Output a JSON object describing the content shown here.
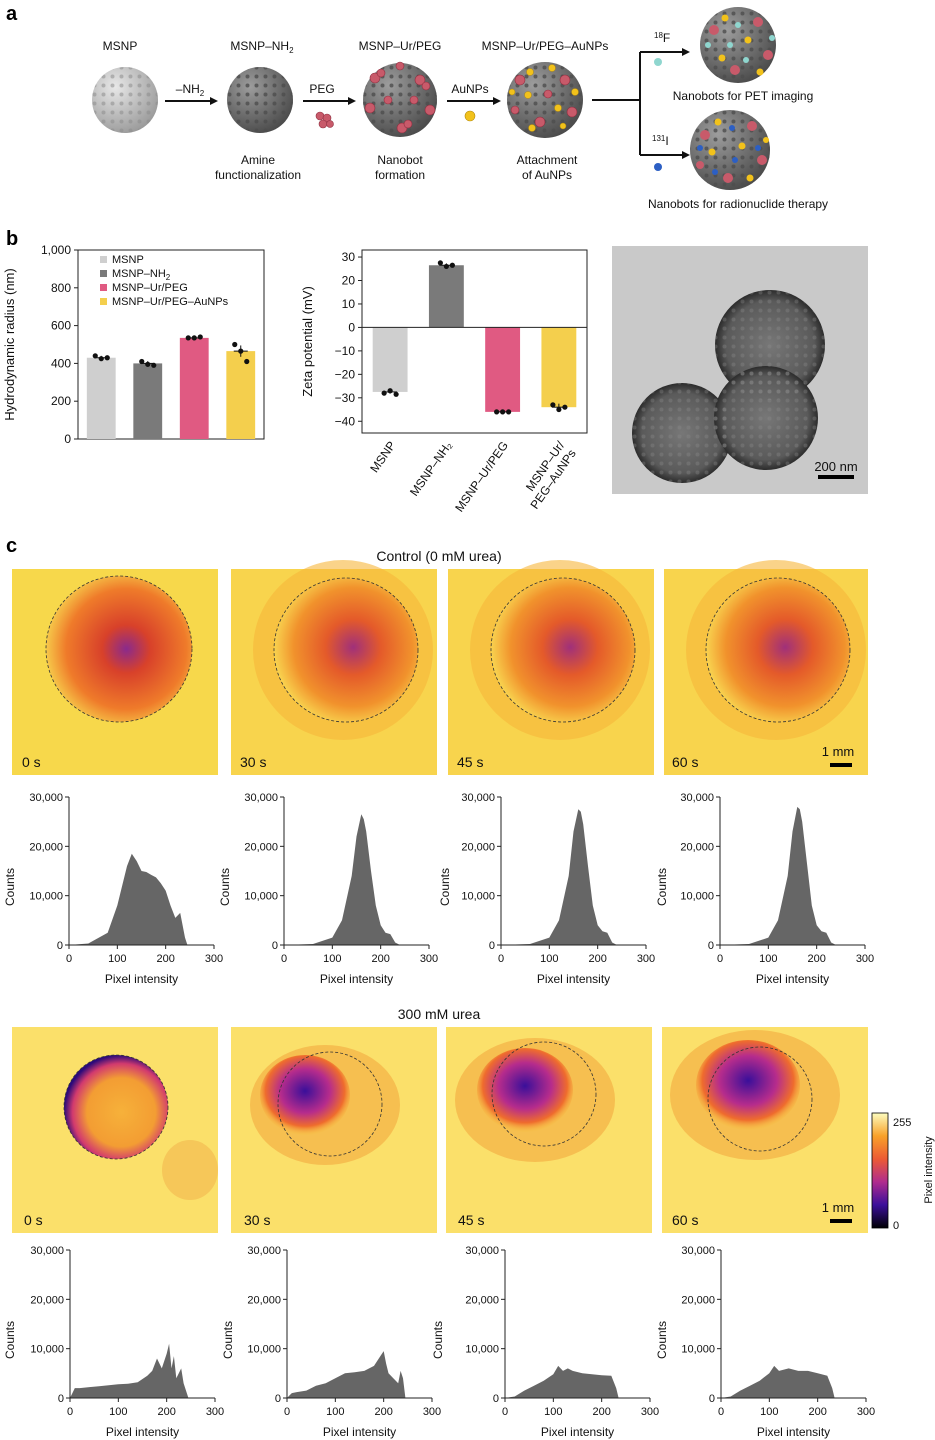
{
  "panel_labels": {
    "a": "a",
    "b": "b",
    "c": "c"
  },
  "panel_a": {
    "stage1_title": "MSNP",
    "stage2_title": "MSNP–NH",
    "stage2_title_sub": "2",
    "stage3_title": "MSNP–Ur/PEG",
    "stage4_title": "MSNP–Ur/PEG–AuNPs",
    "arrow1_label": "–NH",
    "arrow1_label_sub": "2",
    "arrow2_label": "PEG",
    "arrow3_label": "AuNPs",
    "step1_caption_line1": "Amine",
    "step1_caption_line2": "functionalization",
    "step2_caption_line1": "Nanobot",
    "step2_caption_line2": "formation",
    "step3_caption_line1": "Attachment",
    "step3_caption_line2": "of AuNPs",
    "branch_top_sup": "18",
    "branch_top_label": "F",
    "branch_bottom_sup": "131",
    "branch_bottom_label": "I",
    "final_top_caption": "Nanobots for PET imaging",
    "final_bottom_caption": "Nanobots for radionuclide therapy",
    "colors": {
      "silica": "#bdbdbd",
      "amine": "#6e6e6e",
      "urease": "#c85a6a",
      "gold": "#f2c21b",
      "f18": "#8fd6cf",
      "i131": "#2c5fc4"
    }
  },
  "tem": {
    "scale_bar": "200 nm"
  },
  "panel_c": {
    "control_title": "Control  (0 mM urea)",
    "urea_title": "300 mM urea",
    "scale_bar": "1 mm",
    "time_labels": [
      "0 s",
      "30 s",
      "45 s",
      "60 s"
    ],
    "colorbar": {
      "label": "Pixel intensity",
      "max": "255",
      "min": "0"
    }
  },
  "chart_data": [
    {
      "type": "bar",
      "id": "hydrodynamic-radius",
      "categories": [
        "MSNP",
        "MSNP–NH2",
        "MSNP–Ur/PEG",
        "MSNP–Ur/PEG–AuNPs"
      ],
      "legend": [
        "MSNP",
        "MSNP–NH",
        "MSNP–Ur/PEG",
        "MSNP–Ur/PEG–AuNPs"
      ],
      "legend_sub": [
        "",
        "2",
        "",
        ""
      ],
      "colors": [
        "#cfcfcf",
        "#7a7a7a",
        "#e05a82",
        "#f4cf4d"
      ],
      "values": [
        430,
        400,
        535,
        465
      ],
      "points": [
        [
          440,
          425,
          430
        ],
        [
          410,
          395,
          390
        ],
        [
          535,
          535,
          540
        ],
        [
          500,
          465,
          410
        ]
      ],
      "errors": [
        10,
        12,
        5,
        30
      ],
      "ylabel": "Hydrodynamic radius (nm)",
      "ylim": [
        0,
        1000
      ],
      "yticks": [
        "0",
        "200",
        "400",
        "600",
        "800",
        "1,000"
      ],
      "legend_placement": "top-left"
    },
    {
      "type": "bar",
      "id": "zeta-potential",
      "categories": [
        "MSNP",
        "MSNP–NH2",
        "MSNP–Ur/PEG",
        "MSNP–Ur/PEG–AuNPs"
      ],
      "tick_labels": [
        [
          "MSNP"
        ],
        [
          "MSNP–NH₂"
        ],
        [
          "MSNP–Ur/PEG"
        ],
        [
          "MSNP–Ur/",
          "PEG–AuNPs"
        ]
      ],
      "colors": [
        "#cfcfcf",
        "#7a7a7a",
        "#e05a82",
        "#f4cf4d"
      ],
      "values": [
        -27.5,
        26.5,
        -36,
        -34
      ],
      "points": [
        [
          -28,
          -27,
          -28.5
        ],
        [
          27.5,
          26,
          26.5
        ],
        [
          -36,
          -36,
          -36
        ],
        [
          -33,
          -35,
          -34
        ]
      ],
      "errors": [
        0.7,
        0.8,
        0.2,
        1.5
      ],
      "ylabel": "Zeta potential (mV)",
      "ylim": [
        -45,
        33
      ],
      "yticks": [
        "−40",
        "−30",
        "−20",
        "−10",
        "0",
        "10",
        "20",
        "30"
      ]
    },
    {
      "type": "area",
      "id": "histograms",
      "xlabel": "Pixel intensity",
      "ylabel": "Counts",
      "xlim": [
        0,
        300
      ],
      "ylim": [
        0,
        30000
      ],
      "xticks": [
        "0",
        "100",
        "200",
        "300"
      ],
      "yticks": [
        "0",
        "10,000",
        "20,000",
        "30,000"
      ],
      "color": "#666666",
      "series": [
        {
          "x": [
            0,
            40,
            80,
            100,
            120,
            130,
            140,
            150,
            160,
            170,
            180,
            190,
            200,
            210,
            220,
            230,
            240,
            245
          ],
          "y": [
            0,
            300,
            2500,
            8000,
            16000,
            18500,
            17000,
            15000,
            14800,
            14200,
            13700,
            12500,
            11000,
            8000,
            5500,
            6500,
            1500,
            0
          ]
        },
        {
          "x": [
            0,
            60,
            100,
            120,
            140,
            150,
            160,
            165,
            170,
            180,
            190,
            200,
            210,
            220,
            230,
            240
          ],
          "y": [
            0,
            200,
            1500,
            5000,
            14000,
            22000,
            26500,
            25500,
            23000,
            15000,
            8000,
            4000,
            2500,
            2200,
            500,
            0
          ]
        },
        {
          "x": [
            0,
            60,
            100,
            120,
            140,
            150,
            160,
            165,
            170,
            180,
            190,
            200,
            210,
            220,
            230,
            240
          ],
          "y": [
            0,
            200,
            1500,
            5000,
            14000,
            23000,
            27500,
            27000,
            24500,
            16000,
            8000,
            4000,
            2800,
            2500,
            500,
            0
          ]
        },
        {
          "x": [
            0,
            60,
            100,
            120,
            140,
            150,
            160,
            165,
            170,
            180,
            190,
            200,
            210,
            220,
            230,
            240
          ],
          "y": [
            0,
            200,
            1500,
            5000,
            14000,
            23000,
            28000,
            27500,
            25000,
            16500,
            8000,
            4000,
            2800,
            2500,
            500,
            0
          ]
        },
        {
          "x": [
            0,
            5,
            10,
            20,
            40,
            60,
            80,
            100,
            120,
            140,
            160,
            170,
            180,
            190,
            200,
            205,
            210,
            215,
            220,
            225,
            230,
            235,
            240,
            245
          ],
          "y": [
            0,
            1000,
            2000,
            2000,
            2200,
            2400,
            2600,
            2800,
            2900,
            3200,
            4500,
            5500,
            8000,
            6000,
            9000,
            11000,
            6000,
            8500,
            4000,
            5000,
            6000,
            3000,
            1500,
            0
          ]
        },
        {
          "x": [
            0,
            5,
            10,
            20,
            40,
            60,
            80,
            100,
            120,
            140,
            160,
            180,
            190,
            200,
            205,
            210,
            220,
            230,
            235,
            240,
            245
          ],
          "y": [
            0,
            500,
            1000,
            1200,
            1500,
            2500,
            3000,
            4000,
            5000,
            5200,
            5500,
            6500,
            8000,
            9500,
            7000,
            5000,
            4000,
            3000,
            5500,
            4000,
            0
          ]
        },
        {
          "x": [
            0,
            20,
            40,
            60,
            80,
            100,
            110,
            120,
            130,
            140,
            160,
            180,
            200,
            220,
            230,
            235
          ],
          "y": [
            0,
            300,
            1500,
            2500,
            3500,
            4800,
            6500,
            5500,
            6000,
            5500,
            5000,
            4800,
            4600,
            4500,
            2000,
            0
          ]
        },
        {
          "x": [
            0,
            20,
            40,
            60,
            80,
            100,
            110,
            120,
            140,
            160,
            180,
            200,
            220,
            230,
            235
          ],
          "y": [
            0,
            300,
            1500,
            2500,
            3500,
            5000,
            6500,
            5500,
            6000,
            5500,
            5500,
            5000,
            4500,
            2000,
            0
          ]
        }
      ]
    }
  ]
}
